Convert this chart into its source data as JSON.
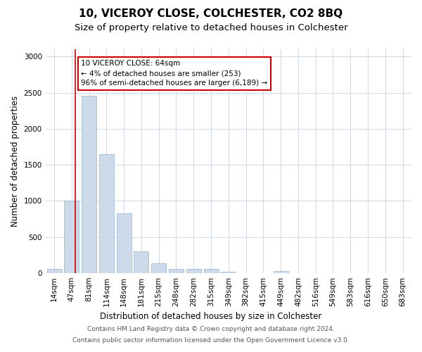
{
  "title": "10, VICEROY CLOSE, COLCHESTER, CO2 8BQ",
  "subtitle": "Size of property relative to detached houses in Colchester",
  "xlabel": "Distribution of detached houses by size in Colchester",
  "ylabel": "Number of detached properties",
  "categories": [
    "14sqm",
    "47sqm",
    "81sqm",
    "114sqm",
    "148sqm",
    "181sqm",
    "215sqm",
    "248sqm",
    "282sqm",
    "315sqm",
    "349sqm",
    "382sqm",
    "415sqm",
    "449sqm",
    "482sqm",
    "516sqm",
    "549sqm",
    "583sqm",
    "616sqm",
    "650sqm",
    "683sqm"
  ],
  "values": [
    60,
    1000,
    2460,
    1650,
    830,
    300,
    140,
    55,
    60,
    55,
    20,
    0,
    0,
    30,
    0,
    0,
    0,
    0,
    0,
    0,
    0
  ],
  "bar_color": "#ccdaea",
  "bar_edge_color": "#a0bdd4",
  "vline_color": "#cc0000",
  "vline_pos": 1.22,
  "annotation_text": "10 VICEROY CLOSE: 64sqm\n← 4% of detached houses are smaller (253)\n96% of semi-detached houses are larger (6,189) →",
  "annotation_box_color": "#ffffff",
  "annotation_box_edge_color": "#cc0000",
  "ylim": [
    0,
    3100
  ],
  "yticks": [
    0,
    500,
    1000,
    1500,
    2000,
    2500,
    3000
  ],
  "footer1": "Contains HM Land Registry data © Crown copyright and database right 2024.",
  "footer2": "Contains public sector information licensed under the Open Government Licence v3.0.",
  "background_color": "#ffffff",
  "plot_background_color": "#ffffff",
  "title_fontsize": 11,
  "subtitle_fontsize": 9.5,
  "axis_label_fontsize": 8.5,
  "tick_fontsize": 7.5,
  "footer_fontsize": 6.5,
  "annotation_fontsize": 7.5
}
